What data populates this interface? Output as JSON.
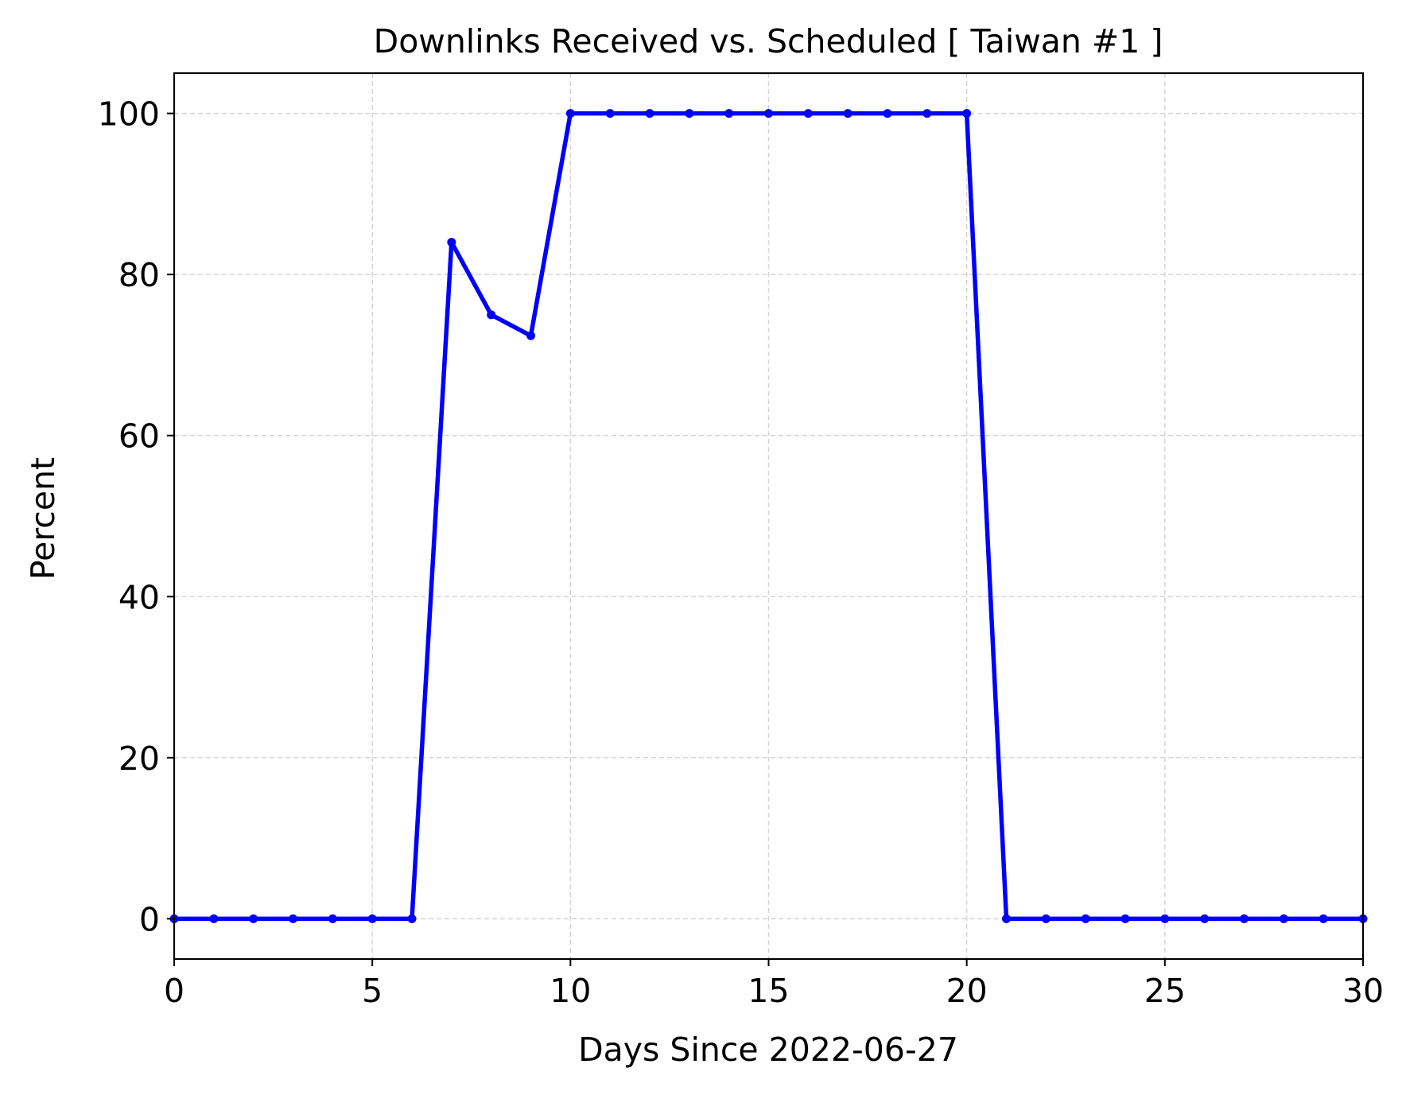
{
  "chart_data": {
    "type": "line",
    "title": "Downlinks Received vs. Scheduled [ Taiwan #1 ]",
    "xlabel": "Days Since 2022-06-27",
    "ylabel": "Percent",
    "xlim": [
      0,
      30
    ],
    "ylim": [
      -5,
      105
    ],
    "xticks": [
      0,
      5,
      10,
      15,
      20,
      25,
      30
    ],
    "yticks": [
      0,
      20,
      40,
      60,
      80,
      100
    ],
    "grid": true,
    "series": [
      {
        "color": "#0000ff",
        "marker": "circle",
        "x": [
          0,
          1,
          2,
          3,
          4,
          5,
          6,
          7,
          8,
          9,
          10,
          11,
          12,
          13,
          14,
          15,
          16,
          17,
          18,
          19,
          20,
          21,
          22,
          23,
          24,
          25,
          26,
          27,
          28,
          29,
          30
        ],
        "y": [
          0,
          0,
          0,
          0,
          0,
          0,
          0,
          84,
          75,
          72.4,
          100,
          100,
          100,
          100,
          100,
          100,
          100,
          100,
          100,
          100,
          100,
          0,
          0,
          0,
          0,
          0,
          0,
          0,
          0,
          0,
          0
        ]
      }
    ]
  }
}
